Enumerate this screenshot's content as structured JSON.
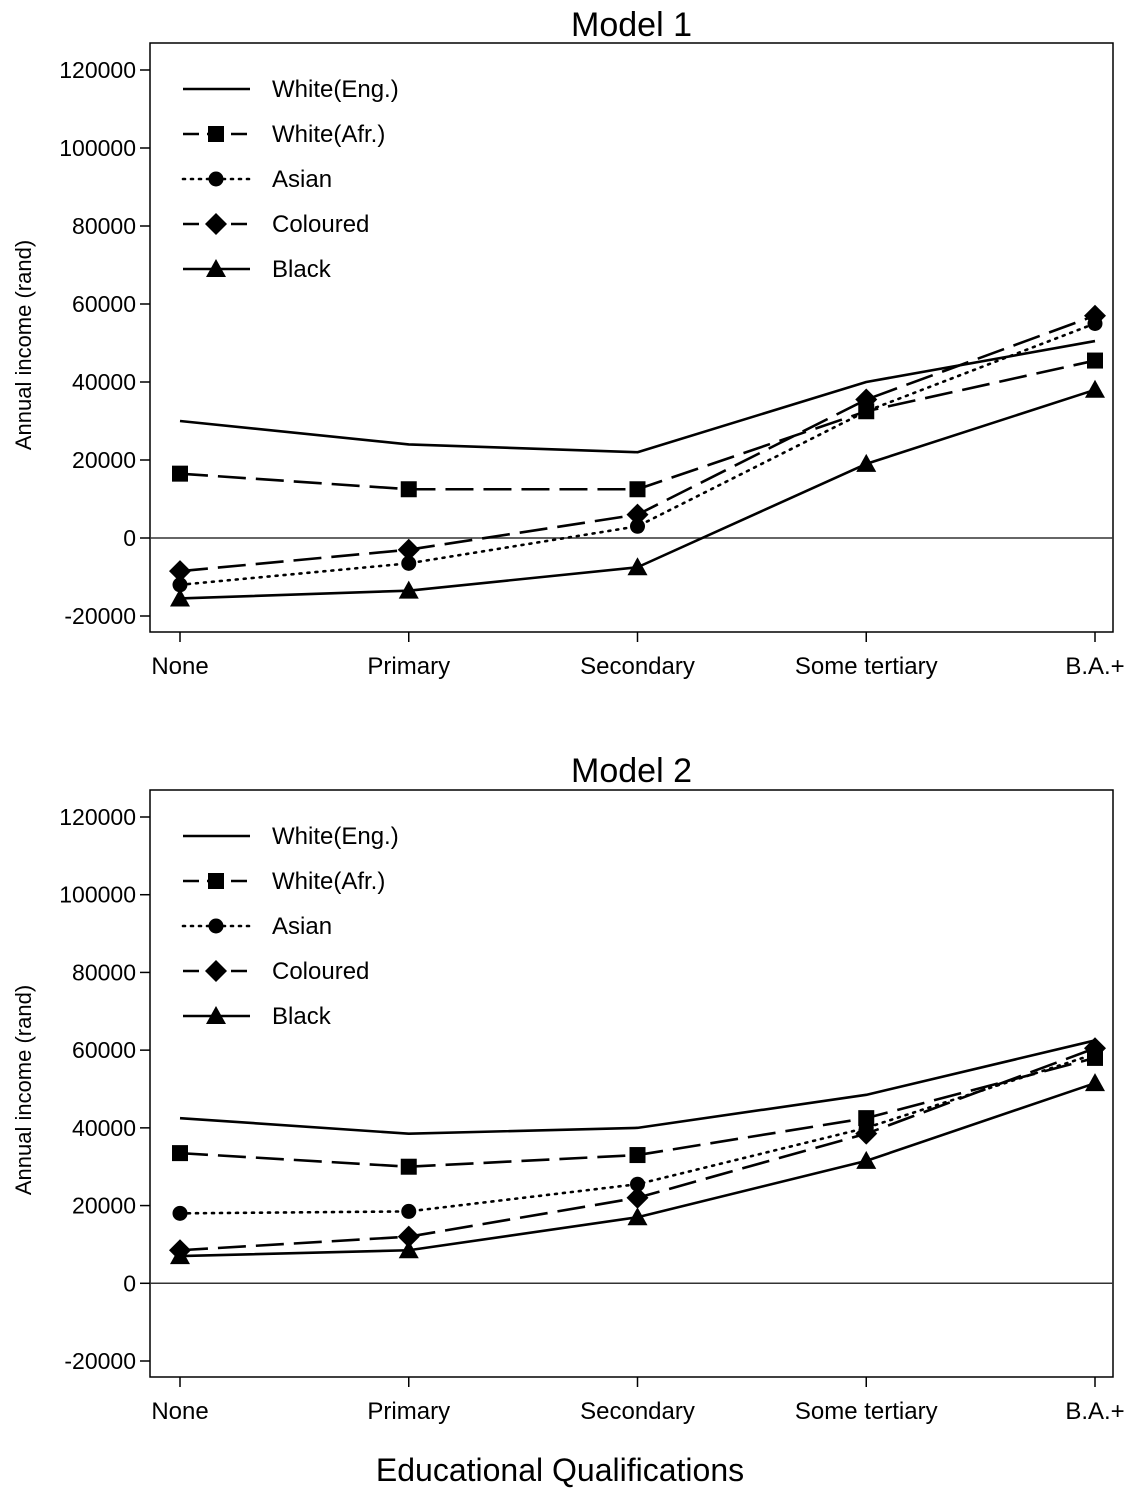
{
  "figure": {
    "xlabel": "Educational Qualifications"
  },
  "chart_data": [
    {
      "type": "line",
      "title": "Model 1",
      "xlabel": "",
      "ylabel": "Annual income (rand)",
      "categories": [
        "None",
        "Primary",
        "Secondary",
        "Some tertiary",
        "B.A.+"
      ],
      "ylim": [
        -20000,
        120000
      ],
      "yticks": [
        -20000,
        0,
        20000,
        40000,
        60000,
        80000,
        100000,
        120000
      ],
      "ytick_labels": [
        "-20000",
        "0",
        "20000",
        "40000",
        "60000",
        "80000",
        "100000",
        "120000"
      ],
      "zero_line": true,
      "legend_position": "top-left",
      "series": [
        {
          "name": "White(Eng.)",
          "style": "solid",
          "marker": "none",
          "values": [
            30000,
            24000,
            22000,
            40000,
            50500
          ]
        },
        {
          "name": "White(Afr.)",
          "style": "longdash",
          "marker": "square",
          "values": [
            16500,
            12500,
            12500,
            32500,
            45500
          ]
        },
        {
          "name": "Asian",
          "style": "dotted",
          "marker": "circle",
          "values": [
            -12000,
            -6500,
            3000,
            32500,
            55000
          ]
        },
        {
          "name": "Coloured",
          "style": "longdash",
          "marker": "diamond",
          "values": [
            -8500,
            -3000,
            6000,
            35500,
            57000
          ]
        },
        {
          "name": "Black",
          "style": "solid",
          "marker": "triangle",
          "values": [
            -15500,
            -13500,
            -7500,
            19000,
            38000
          ]
        }
      ]
    },
    {
      "type": "line",
      "title": "Model 2",
      "xlabel": "",
      "ylabel": "Annual income (rand)",
      "categories": [
        "None",
        "Primary",
        "Secondary",
        "Some tertiary",
        "B.A.+"
      ],
      "ylim": [
        -20000,
        120000
      ],
      "yticks": [
        -20000,
        0,
        20000,
        40000,
        60000,
        80000,
        100000,
        120000
      ],
      "ytick_labels": [
        "-20000",
        "0",
        "20000",
        "40000",
        "60000",
        "80000",
        "100000",
        "120000"
      ],
      "zero_line": true,
      "legend_position": "top-left",
      "series": [
        {
          "name": "White(Eng.)",
          "style": "solid",
          "marker": "none",
          "values": [
            42500,
            38500,
            40000,
            48500,
            62500
          ]
        },
        {
          "name": "White(Afr.)",
          "style": "longdash",
          "marker": "square",
          "values": [
            33500,
            30000,
            33000,
            42500,
            58000
          ]
        },
        {
          "name": "Asian",
          "style": "dotted",
          "marker": "circle",
          "values": [
            18000,
            18500,
            25500,
            40000,
            59000
          ]
        },
        {
          "name": "Coloured",
          "style": "longdash",
          "marker": "diamond",
          "values": [
            8500,
            12000,
            22000,
            38500,
            60500
          ]
        },
        {
          "name": "Black",
          "style": "solid",
          "marker": "triangle",
          "values": [
            7000,
            8500,
            17000,
            31500,
            51500
          ]
        }
      ]
    }
  ]
}
